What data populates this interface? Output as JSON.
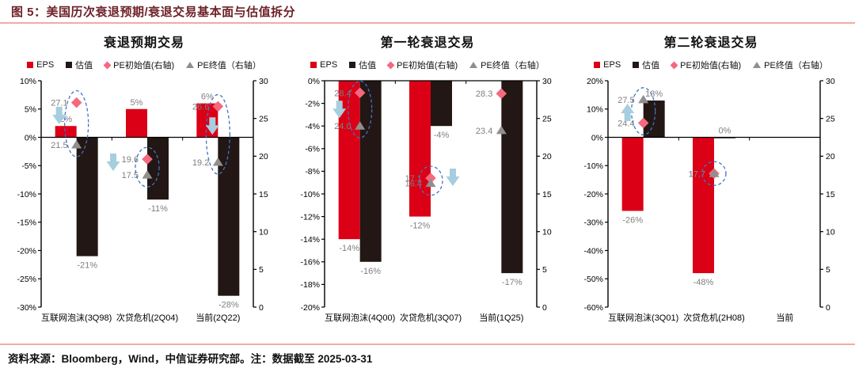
{
  "figure": {
    "title": "图 5：美国历次衰退预期/衰退交易基本面与估值拆分",
    "source_note": "资料来源：Bloomberg，Wind，中信证券研究部。注：数据截至 2025-03-31"
  },
  "colors": {
    "eps_bar": "#db0016",
    "valuation_bar": "#221714",
    "pe_start_marker": "#f4697e",
    "pe_end_marker": "#8f8f8f",
    "arrow": "#a6cede",
    "ellipse": "#4472c4",
    "accent_line": "#f2aaa6",
    "title_text": "#6e2129",
    "data_label": "#7f7f7f"
  },
  "chart_data": [
    {
      "type": "bar",
      "title": "衰退预期交易",
      "legend": [
        "EPS",
        "估值",
        "PE初始值(右轴)",
        "PE终值（右轴）"
      ],
      "categories": [
        "互联网泡沫(3Q98)",
        "次贷危机(2Q04)",
        "当前(2Q22)"
      ],
      "left_axis": {
        "min": -30,
        "max": 10,
        "step": 5,
        "suffix": "%"
      },
      "right_axis": {
        "min": 0,
        "max": 30,
        "step": 5
      },
      "series": [
        {
          "role": "eps",
          "name": "EPS",
          "type": "bar",
          "axis": "left",
          "values": [
            2,
            5,
            6
          ],
          "labels": [
            "2%",
            "5%",
            "6%"
          ]
        },
        {
          "role": "val",
          "name": "估值",
          "type": "bar",
          "axis": "left",
          "values": [
            -21,
            -11,
            -28
          ],
          "labels": [
            "-21%",
            "-11%",
            "-28%"
          ]
        },
        {
          "role": "pe_start",
          "name": "PE初始值(右轴)",
          "type": "scatter-diamond",
          "axis": "right",
          "values": [
            27.1,
            19.6,
            26.6
          ],
          "labels": [
            "27.1",
            "19.6",
            "26.6"
          ]
        },
        {
          "role": "pe_end",
          "name": "PE终值（右轴）",
          "type": "scatter-triangle",
          "axis": "right",
          "values": [
            21.5,
            17.5,
            19.2
          ],
          "labels": [
            "21.5",
            "17.5",
            "19.2"
          ]
        }
      ],
      "annotations": {
        "ellipses": [
          0,
          1,
          2
        ],
        "arrows": [
          {
            "group": 0,
            "dir": "down",
            "rv": 25.4,
            "dx": -22
          },
          {
            "group": 1,
            "dir": "down",
            "rv": 19.2,
            "dx": -43
          },
          {
            "group": 2,
            "dir": "down",
            "rv": 24.0,
            "dx": -7
          }
        ]
      }
    },
    {
      "type": "bar",
      "title": "第一轮衰退交易",
      "legend": [
        "EPS",
        "估值",
        "PE初始值(右轴)",
        "PE终值（右轴）"
      ],
      "categories": [
        "互联网泡沫(4Q00)",
        "次贷危机(3Q07)",
        "当前(1Q25)"
      ],
      "left_axis": {
        "min": -20,
        "max": 0,
        "step": 2,
        "suffix": "%"
      },
      "right_axis": {
        "min": 0,
        "max": 30,
        "step": 5
      },
      "series": [
        {
          "role": "eps",
          "name": "EPS",
          "type": "bar",
          "axis": "left",
          "values": [
            -14,
            -12,
            null
          ],
          "labels": [
            "-14%",
            "-12%",
            null
          ]
        },
        {
          "role": "val",
          "name": "估值",
          "type": "bar",
          "axis": "left",
          "values": [
            -16,
            -4,
            -17
          ],
          "labels": [
            "-16%",
            "-4%",
            "-17%"
          ]
        },
        {
          "role": "pe_start",
          "name": "PE初始值(右轴)",
          "type": "scatter-diamond",
          "axis": "right",
          "values": [
            28.4,
            17.1,
            28.3
          ],
          "labels": [
            "28.4",
            "17.1",
            "28.3"
          ]
        },
        {
          "role": "pe_end",
          "name": "PE终值（右轴）",
          "type": "scatter-triangle",
          "axis": "right",
          "values": [
            24.0,
            16.4,
            23.4
          ],
          "labels": [
            "24.0",
            "16.4",
            "23.4"
          ]
        }
      ],
      "annotations": {
        "ellipses": [
          0,
          1
        ],
        "arrows": [
          {
            "group": 0,
            "dir": "down",
            "rv": 26.2,
            "dx": -26
          },
          {
            "group": 1,
            "dir": "down",
            "rv": 17.2,
            "dx": 28
          }
        ]
      }
    },
    {
      "type": "bar",
      "title": "第二轮衰退交易",
      "legend": [
        "EPS",
        "估值",
        "PE初始值(右轴)",
        "PE终值（右轴）"
      ],
      "categories": [
        "互联网泡沫(3Q01)",
        "次贷危机(2H08)",
        "当前"
      ],
      "left_axis": {
        "min": -60,
        "max": 20,
        "step": 10,
        "suffix": "%"
      },
      "right_axis": {
        "min": 0,
        "max": 30,
        "step": 5
      },
      "series": [
        {
          "role": "eps",
          "name": "EPS",
          "type": "bar",
          "axis": "left",
          "values": [
            -26,
            -48,
            null
          ],
          "labels": [
            "-26%",
            "-48%",
            null
          ]
        },
        {
          "role": "val",
          "name": "估值",
          "type": "bar",
          "axis": "left",
          "values": [
            13,
            0,
            null
          ],
          "labels": [
            "13%",
            "0%",
            null
          ]
        },
        {
          "role": "pe_start",
          "name": "PE初始值(右轴)",
          "type": "scatter-diamond",
          "axis": "right",
          "values": [
            24.4,
            17.7,
            null
          ],
          "labels": [
            "24.4",
            "17.7",
            null
          ]
        },
        {
          "role": "pe_end",
          "name": "PE终值（右轴）",
          "type": "scatter-triangle",
          "axis": "right",
          "values": [
            27.5,
            17.7,
            null
          ],
          "labels": [
            "27.5",
            "17.7",
            null
          ]
        }
      ],
      "annotations": {
        "ellipses": [
          0,
          1
        ],
        "arrows": [
          {
            "group": 0,
            "dir": "up",
            "rv": 25.8,
            "dx": -20
          }
        ]
      }
    }
  ]
}
